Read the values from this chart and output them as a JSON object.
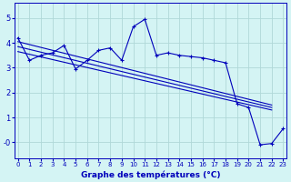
{
  "title": "Graphe des températures (°C)",
  "bg_color": "#d4f4f4",
  "grid_color": "#b0d8d8",
  "line_color": "#0000bb",
  "x_ticks": [
    0,
    1,
    2,
    3,
    4,
    5,
    6,
    7,
    8,
    9,
    10,
    11,
    12,
    13,
    14,
    15,
    16,
    17,
    18,
    19,
    20,
    21,
    22,
    23
  ],
  "y_ticks": [
    0,
    1,
    2,
    3,
    4,
    5
  ],
  "y_tick_labels": [
    "-0",
    "1",
    "2",
    "3",
    "4",
    "5"
  ],
  "xlim": [
    -0.3,
    23.3
  ],
  "ylim": [
    -0.65,
    5.6
  ],
  "main_series": [
    4.2,
    3.3,
    3.5,
    3.6,
    3.9,
    2.95,
    3.3,
    3.7,
    3.8,
    3.3,
    4.65,
    4.95,
    3.5,
    3.6,
    3.5,
    3.45,
    3.4,
    3.3,
    3.2,
    1.55,
    1.4,
    -0.1,
    -0.05,
    0.55
  ],
  "trend_lines": [
    {
      "x_start": 0,
      "y_start": 4.05,
      "x_end": 22,
      "y_end": 1.5
    },
    {
      "x_start": 0,
      "y_start": 3.85,
      "x_end": 22,
      "y_end": 1.4
    },
    {
      "x_start": 0,
      "y_start": 3.65,
      "x_end": 22,
      "y_end": 1.3
    }
  ]
}
